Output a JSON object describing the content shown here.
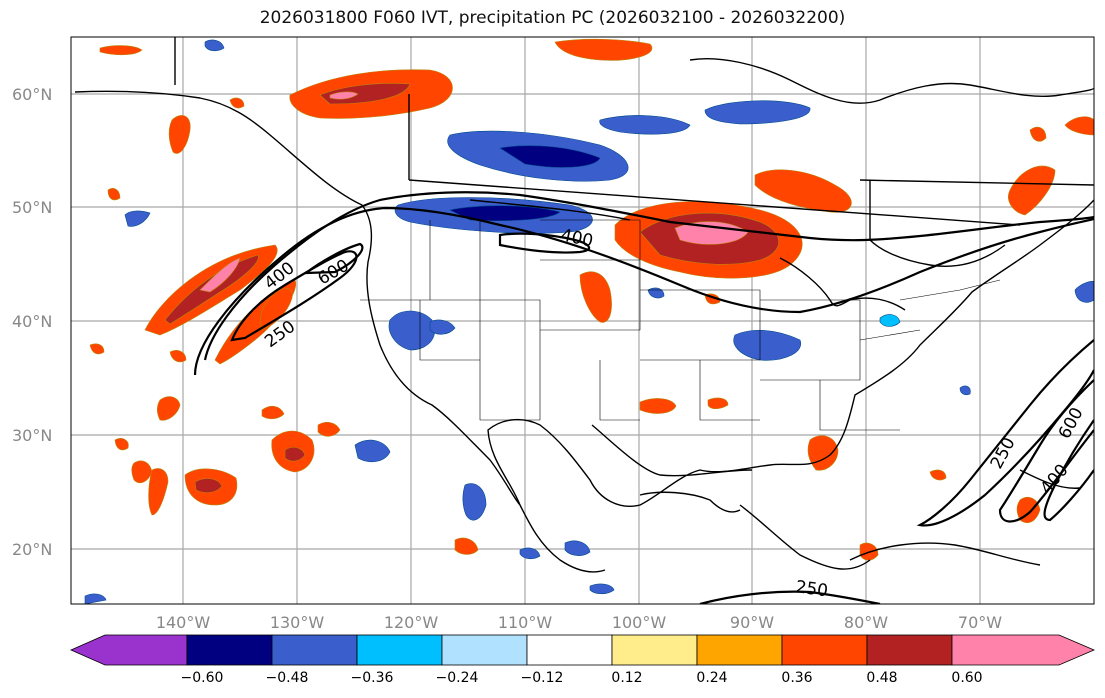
{
  "title": "2026031800 F060 IVT, precipitation PC (2026032100 - 2026032200)",
  "latitude_labels": [
    "60°N",
    "50°N",
    "40°N",
    "30°N",
    "20°N"
  ],
  "longitude_labels": [
    "140°W",
    "130°W",
    "120°W",
    "110°W",
    "100°W",
    "90°W",
    "80°W",
    "70°W"
  ],
  "ivt_contour_labels": [
    "400",
    "600",
    "250",
    "400",
    "250",
    "600",
    "400",
    "250"
  ],
  "colorbar": {
    "ticks": [
      "−0.60",
      "−0.48",
      "−0.36",
      "−0.24",
      "−0.12",
      "0.12",
      "0.24",
      "0.36",
      "0.48",
      "0.60"
    ],
    "colors": [
      "#9a32cd",
      "#000080",
      "#3a5fcd",
      "#00bfff",
      "#b0e2ff",
      "#ffffff",
      "#ffec8b",
      "#ffa500",
      "#ff4500",
      "#b22222",
      "#ff82ab"
    ]
  }
}
